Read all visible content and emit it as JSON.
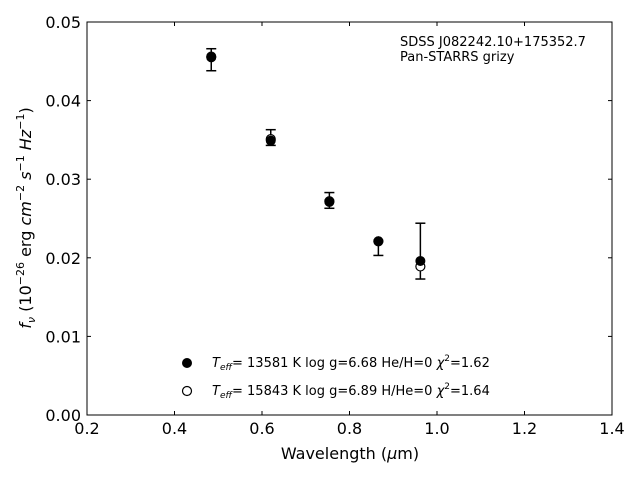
{
  "chart_data": {
    "type": "scatter",
    "xlabel": {
      "main": "Wavelength (",
      "greek": "μ",
      "unit": "m)"
    },
    "ylabel": {
      "sym": "f",
      "sub": "ν",
      "p1": " (10",
      "exp1": "−26",
      "p2": " erg ",
      "cm": "cm",
      "exp2": "−2",
      "s": " s",
      "exp3": "−1",
      "hz": " Hz",
      "exp4": "−1",
      "close": ")"
    },
    "xlim": [
      0.2,
      1.4
    ],
    "ylim": [
      0.0,
      0.05
    ],
    "xticks": [
      "0.2",
      "0.4",
      "0.6",
      "0.8",
      "1.0",
      "1.2",
      "1.4"
    ],
    "yticks": [
      "0.00",
      "0.01",
      "0.02",
      "0.03",
      "0.04",
      "0.05"
    ],
    "annotations": [
      "SDSS J082242.10+175352.7",
      "Pan-STARRS grizy"
    ],
    "observed": [
      {
        "x": 0.484,
        "y": 0.0452,
        "err_lo": 0.0014,
        "err_hi": 0.0014
      },
      {
        "x": 0.62,
        "y": 0.0353,
        "err_lo": 0.001,
        "err_hi": 0.001
      },
      {
        "x": 0.754,
        "y": 0.0273,
        "err_lo": 0.001,
        "err_hi": 0.001
      },
      {
        "x": 0.866,
        "y": 0.0222,
        "err_lo": 0.0019,
        "err_hi": 0.0
      },
      {
        "x": 0.962,
        "y": 0.0209,
        "err_lo": 0.0036,
        "err_hi": 0.0035
      }
    ],
    "series": [
      {
        "marker": "filled",
        "legend": {
          "T": "T",
          "sub": "eff",
          "rest": "= 13581 K  log g=6.68  He/H=0  ",
          "chi": "χ",
          "sup": "2",
          "val": "=1.62"
        },
        "x": [
          0.484,
          0.62,
          0.754,
          0.866,
          0.962
        ],
        "y": [
          0.0455,
          0.0349,
          0.0271,
          0.0221,
          0.0196
        ]
      },
      {
        "marker": "open",
        "legend": {
          "T": "T",
          "sub": "eff",
          "rest": "= 15843 K  log g=6.89  H/He=0  ",
          "chi": "χ",
          "sup": "2",
          "val": "=1.64"
        },
        "x": [
          0.484,
          0.62,
          0.754,
          0.866,
          0.962
        ],
        "y": [
          0.0456,
          0.0351,
          0.0272,
          0.0221,
          0.0189
        ]
      }
    ],
    "legend_position": "bottom-center",
    "grid": false
  }
}
